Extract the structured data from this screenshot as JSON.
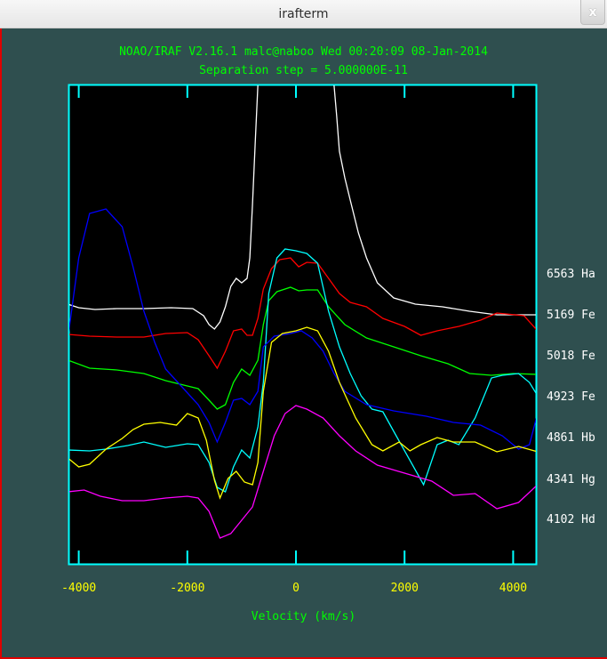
{
  "window": {
    "title": "irafterm",
    "close_icon": "x"
  },
  "plot": {
    "header_line1": "NOAO/IRAF V2.16.1 malc@naboo Wed 00:20:09 08-Jan-2014",
    "header_line2": "Separation step = 5.000000E-11",
    "xlabel": "Velocity (km/s)",
    "xticks": [
      "-4000",
      "-2000",
      "0",
      "2000",
      "4000"
    ],
    "line_labels": [
      "6563 Ha",
      "5169 Fe",
      "5018 Fe",
      "4923 Fe",
      "4861 Hb",
      "4341 Hg",
      "4102 Hd"
    ],
    "colors": {
      "background": "#2f4f4f",
      "frame": "#00ffff",
      "plot_bg": "#000000",
      "title_text": "#00ff00",
      "tick_text": "#ffff00",
      "label_text": "#ffffff"
    }
  },
  "chart_data": {
    "type": "line",
    "title": "NOAO/IRAF V2.16.1 malc@naboo Wed 00:20:09 08-Jan-2014",
    "subtitle": "Separation step = 5.000000E-11",
    "xlabel": "Velocity (km/s)",
    "ylabel": "",
    "xlim": [
      -4200,
      4450
    ],
    "xticks": [
      -4000,
      -2000,
      0,
      2000,
      4000
    ],
    "grid": false,
    "legend_position": "right (labels at each curve's continuum level)",
    "note": "y values are screen pixel rows within the plot (top=95, bottom=634); curves are vertically offset normalized flux profiles",
    "series": [
      {
        "name": "6563 Ha",
        "color": "#ffffff",
        "points": [
          [
            -4200,
            342
          ],
          [
            -4000,
            346
          ],
          [
            -3700,
            348
          ],
          [
            -3300,
            347
          ],
          [
            -2800,
            347
          ],
          [
            -2300,
            346
          ],
          [
            -1900,
            347
          ],
          [
            -1700,
            355
          ],
          [
            -1600,
            365
          ],
          [
            -1500,
            370
          ],
          [
            -1400,
            362
          ],
          [
            -1300,
            345
          ],
          [
            -1200,
            322
          ],
          [
            -1100,
            313
          ],
          [
            -1000,
            318
          ],
          [
            -900,
            313
          ],
          [
            -850,
            290
          ],
          [
            -800,
            230
          ],
          [
            -750,
            160
          ],
          [
            -700,
            95
          ]
        ],
        "points_right": [
          [
            700,
            95
          ],
          [
            750,
            130
          ],
          [
            800,
            170
          ],
          [
            900,
            200
          ],
          [
            1000,
            225
          ],
          [
            1150,
            262
          ],
          [
            1300,
            290
          ],
          [
            1500,
            318
          ],
          [
            1800,
            335
          ],
          [
            2200,
            342
          ],
          [
            2700,
            345
          ],
          [
            3200,
            350
          ],
          [
            3700,
            354
          ],
          [
            4450,
            354
          ]
        ]
      },
      {
        "name": "5169 Fe",
        "color": "#ff0000",
        "points": [
          [
            -4200,
            376
          ],
          [
            -3800,
            378
          ],
          [
            -3300,
            379
          ],
          [
            -2800,
            379
          ],
          [
            -2400,
            375
          ],
          [
            -2000,
            374
          ],
          [
            -1800,
            382
          ],
          [
            -1600,
            400
          ],
          [
            -1450,
            414
          ],
          [
            -1300,
            395
          ],
          [
            -1150,
            372
          ],
          [
            -1000,
            370
          ],
          [
            -900,
            377
          ],
          [
            -800,
            377
          ],
          [
            -700,
            358
          ],
          [
            -600,
            325
          ],
          [
            -450,
            302
          ],
          [
            -300,
            292
          ],
          [
            -100,
            290
          ],
          [
            50,
            300
          ],
          [
            200,
            295
          ],
          [
            400,
            296
          ],
          [
            600,
            313
          ],
          [
            800,
            330
          ],
          [
            1000,
            340
          ],
          [
            1300,
            345
          ],
          [
            1600,
            358
          ],
          [
            2000,
            367
          ],
          [
            2300,
            377
          ],
          [
            2600,
            372
          ],
          [
            3000,
            367
          ],
          [
            3400,
            360
          ],
          [
            3700,
            352
          ],
          [
            4200,
            355
          ],
          [
            4450,
            372
          ]
        ]
      },
      {
        "name": "5018 Fe",
        "color": "#00ff00",
        "points": [
          [
            -4200,
            405
          ],
          [
            -3800,
            414
          ],
          [
            -3300,
            416
          ],
          [
            -2800,
            420
          ],
          [
            -2400,
            428
          ],
          [
            -2000,
            434
          ],
          [
            -1800,
            437
          ],
          [
            -1600,
            450
          ],
          [
            -1450,
            460
          ],
          [
            -1300,
            455
          ],
          [
            -1150,
            430
          ],
          [
            -1000,
            415
          ],
          [
            -850,
            422
          ],
          [
            -700,
            405
          ],
          [
            -600,
            365
          ],
          [
            -500,
            338
          ],
          [
            -350,
            328
          ],
          [
            -100,
            323
          ],
          [
            50,
            327
          ],
          [
            200,
            326
          ],
          [
            400,
            326
          ],
          [
            600,
            345
          ],
          [
            900,
            365
          ],
          [
            1300,
            380
          ],
          [
            1800,
            390
          ],
          [
            2300,
            400
          ],
          [
            2800,
            409
          ],
          [
            3200,
            420
          ],
          [
            3600,
            422
          ],
          [
            4000,
            420
          ],
          [
            4450,
            421
          ]
        ]
      },
      {
        "name": "4923 Fe",
        "color": "#00ffff",
        "points": [
          [
            -4200,
            506
          ],
          [
            -3800,
            507
          ],
          [
            -3500,
            505
          ],
          [
            -3100,
            501
          ],
          [
            -2800,
            497
          ],
          [
            -2400,
            503
          ],
          [
            -2000,
            499
          ],
          [
            -1800,
            500
          ],
          [
            -1600,
            520
          ],
          [
            -1450,
            548
          ],
          [
            -1300,
            553
          ],
          [
            -1150,
            525
          ],
          [
            -1000,
            506
          ],
          [
            -850,
            515
          ],
          [
            -700,
            480
          ],
          [
            -600,
            430
          ],
          [
            -500,
            330
          ],
          [
            -350,
            290
          ],
          [
            -200,
            280
          ],
          [
            0,
            282
          ],
          [
            200,
            285
          ],
          [
            400,
            296
          ],
          [
            600,
            350
          ],
          [
            800,
            390
          ],
          [
            1000,
            420
          ],
          [
            1200,
            445
          ],
          [
            1400,
            460
          ],
          [
            1600,
            463
          ],
          [
            1800,
            485
          ],
          [
            2350,
            545
          ],
          [
            2600,
            500
          ],
          [
            2800,
            495
          ],
          [
            3000,
            500
          ],
          [
            3300,
            470
          ],
          [
            3600,
            425
          ],
          [
            3800,
            422
          ],
          [
            4100,
            420
          ],
          [
            4300,
            430
          ],
          [
            4450,
            445
          ]
        ]
      },
      {
        "name": "4861 Hb",
        "color": "#0000ff",
        "points": [
          [
            -4200,
            380
          ],
          [
            -4000,
            290
          ],
          [
            -3800,
            240
          ],
          [
            -3500,
            235
          ],
          [
            -3200,
            255
          ],
          [
            -3000,
            300
          ],
          [
            -2800,
            350
          ],
          [
            -2600,
            385
          ],
          [
            -2400,
            415
          ],
          [
            -2100,
            435
          ],
          [
            -1800,
            455
          ],
          [
            -1600,
            475
          ],
          [
            -1450,
            497
          ],
          [
            -1300,
            475
          ],
          [
            -1150,
            450
          ],
          [
            -1000,
            448
          ],
          [
            -850,
            455
          ],
          [
            -700,
            440
          ],
          [
            -600,
            390
          ],
          [
            -400,
            378
          ],
          [
            -100,
            375
          ],
          [
            100,
            372
          ],
          [
            300,
            380
          ],
          [
            500,
            395
          ],
          [
            700,
            420
          ],
          [
            900,
            440
          ],
          [
            1300,
            455
          ],
          [
            1800,
            462
          ],
          [
            2400,
            468
          ],
          [
            2900,
            475
          ],
          [
            3400,
            478
          ],
          [
            3800,
            490
          ],
          [
            4100,
            505
          ],
          [
            4300,
            500
          ],
          [
            4450,
            465
          ]
        ]
      },
      {
        "name": "4341 Hg",
        "color": "#ffff00",
        "points": [
          [
            -4200,
            515
          ],
          [
            -4000,
            525
          ],
          [
            -3800,
            522
          ],
          [
            -3500,
            505
          ],
          [
            -3200,
            493
          ],
          [
            -3000,
            483
          ],
          [
            -2800,
            477
          ],
          [
            -2500,
            475
          ],
          [
            -2200,
            478
          ],
          [
            -2000,
            465
          ],
          [
            -1800,
            470
          ],
          [
            -1650,
            495
          ],
          [
            -1500,
            540
          ],
          [
            -1400,
            560
          ],
          [
            -1250,
            538
          ],
          [
            -1100,
            530
          ],
          [
            -950,
            542
          ],
          [
            -800,
            545
          ],
          [
            -700,
            520
          ],
          [
            -600,
            440
          ],
          [
            -450,
            385
          ],
          [
            -250,
            375
          ],
          [
            0,
            372
          ],
          [
            200,
            368
          ],
          [
            400,
            372
          ],
          [
            600,
            395
          ],
          [
            800,
            430
          ],
          [
            1100,
            470
          ],
          [
            1400,
            500
          ],
          [
            1600,
            507
          ],
          [
            1900,
            497
          ],
          [
            2100,
            507
          ],
          [
            2300,
            500
          ],
          [
            2600,
            492
          ],
          [
            2900,
            497
          ],
          [
            3300,
            497
          ],
          [
            3700,
            508
          ],
          [
            4100,
            502
          ],
          [
            4450,
            508
          ]
        ]
      },
      {
        "name": "4102 Hd",
        "color": "#ff00ff",
        "points": [
          [
            -4200,
            553
          ],
          [
            -3900,
            551
          ],
          [
            -3600,
            558
          ],
          [
            -3200,
            563
          ],
          [
            -2800,
            563
          ],
          [
            -2400,
            560
          ],
          [
            -2000,
            558
          ],
          [
            -1800,
            560
          ],
          [
            -1600,
            575
          ],
          [
            -1400,
            605
          ],
          [
            -1200,
            600
          ],
          [
            -1000,
            585
          ],
          [
            -800,
            570
          ],
          [
            -600,
            530
          ],
          [
            -400,
            490
          ],
          [
            -200,
            465
          ],
          [
            0,
            456
          ],
          [
            200,
            460
          ],
          [
            500,
            470
          ],
          [
            800,
            490
          ],
          [
            1100,
            507
          ],
          [
            1500,
            523
          ],
          [
            2000,
            532
          ],
          [
            2500,
            541
          ],
          [
            2900,
            557
          ],
          [
            3300,
            555
          ],
          [
            3700,
            572
          ],
          [
            4100,
            565
          ],
          [
            4450,
            545
          ]
        ]
      }
    ]
  }
}
